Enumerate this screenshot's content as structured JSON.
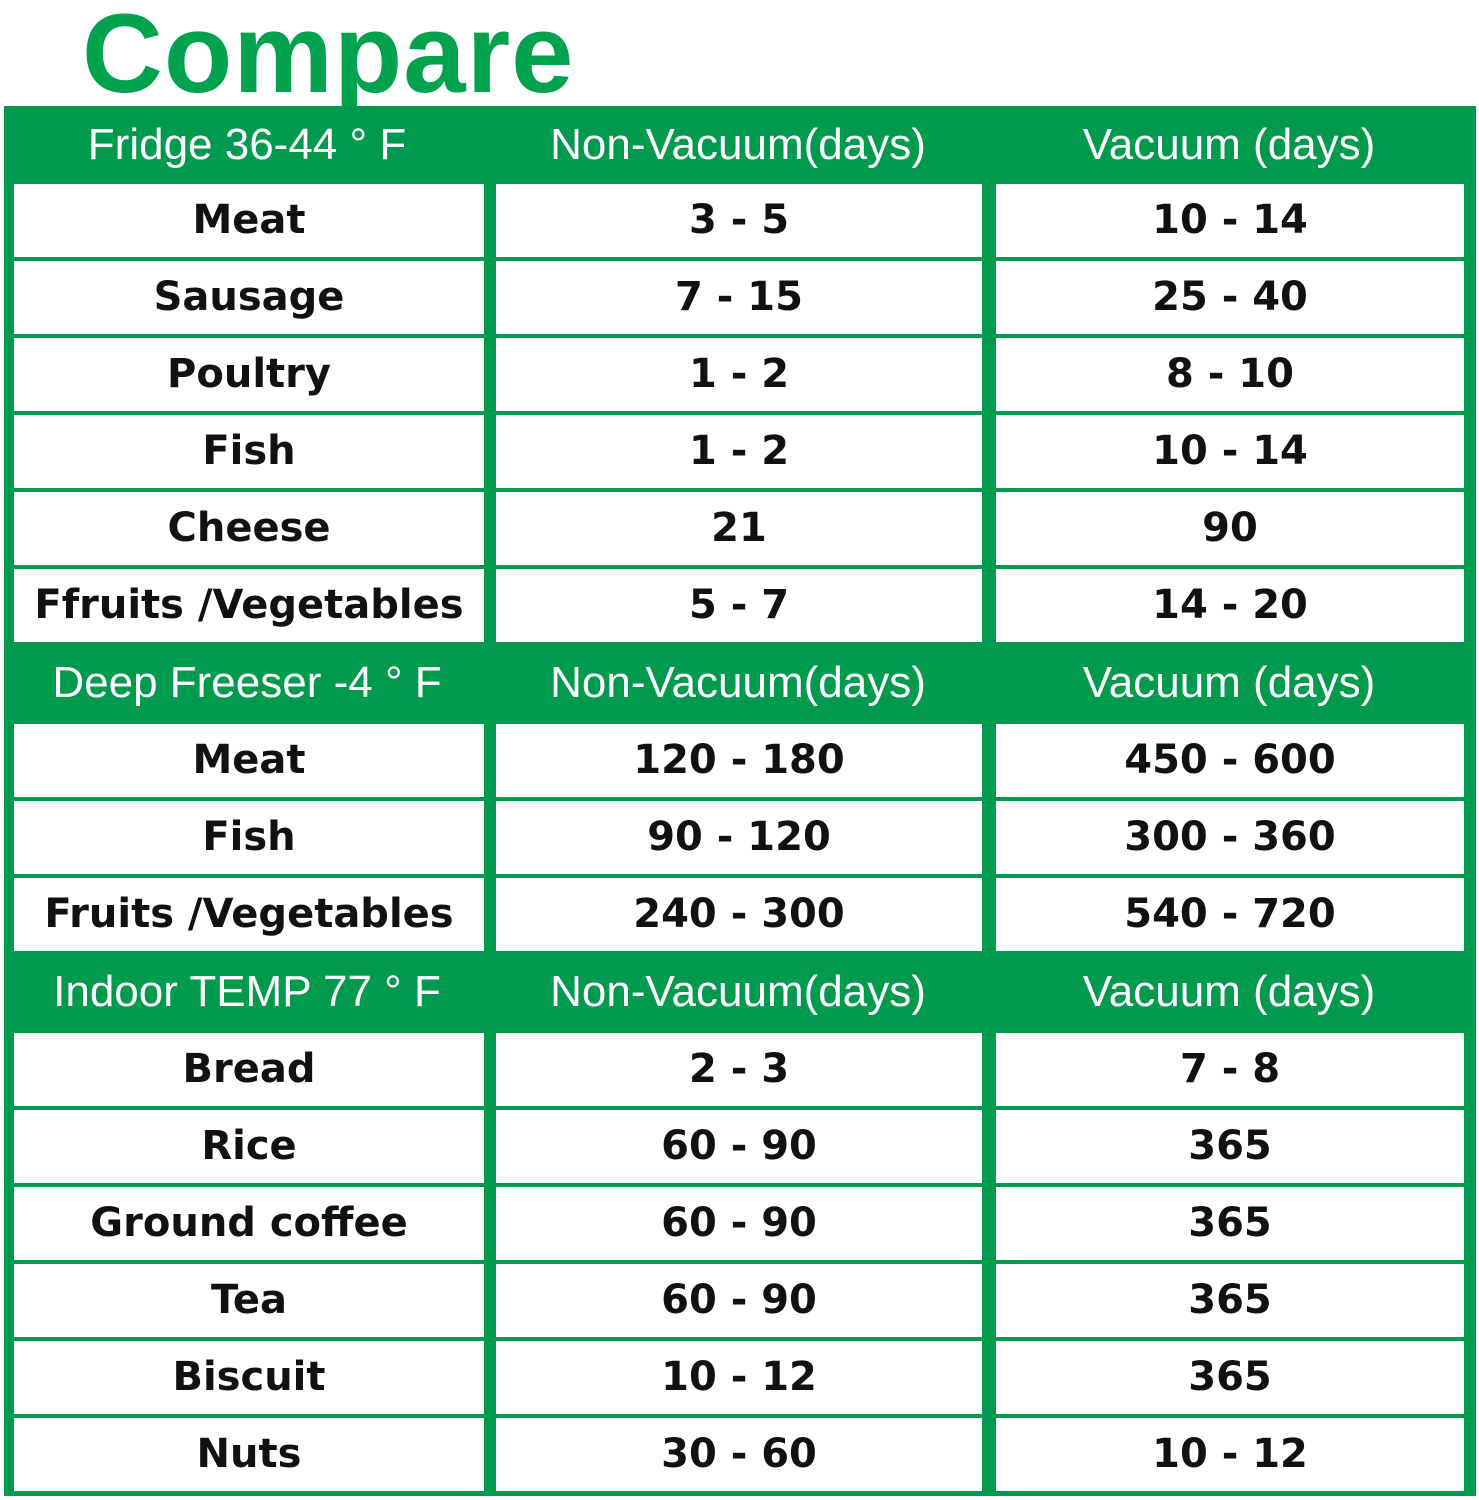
{
  "title": "Compare",
  "colors": {
    "accent": "#00a24e",
    "border": "#009a4e"
  },
  "sections": [
    {
      "header": {
        "category": "Fridge 36-44 ° F",
        "non_vacuum": "Non-Vacuum(days)",
        "vacuum": "Vacuum (days)"
      },
      "rows": [
        {
          "item": "Meat",
          "non_vacuum": "3 - 5",
          "vacuum": "10 - 14"
        },
        {
          "item": "Sausage",
          "non_vacuum": "7 - 15",
          "vacuum": "25 - 40"
        },
        {
          "item": "Poultry",
          "non_vacuum": "1 - 2",
          "vacuum": "8 - 10"
        },
        {
          "item": "Fish",
          "non_vacuum": "1 - 2",
          "vacuum": "10 - 14"
        },
        {
          "item": "Cheese",
          "non_vacuum": "21",
          "vacuum": "90"
        },
        {
          "item": "Ffruits /Vegetables",
          "non_vacuum": "5 - 7",
          "vacuum": "14 - 20"
        }
      ]
    },
    {
      "header": {
        "category": "Deep Freeser -4 ° F",
        "non_vacuum": "Non-Vacuum(days)",
        "vacuum": "Vacuum (days)"
      },
      "rows": [
        {
          "item": "Meat",
          "non_vacuum": "120 - 180",
          "vacuum": "450 - 600"
        },
        {
          "item": "Fish",
          "non_vacuum": "90 - 120",
          "vacuum": "300 - 360"
        },
        {
          "item": "Fruits /Vegetables",
          "non_vacuum": "240 - 300",
          "vacuum": "540 - 720"
        }
      ]
    },
    {
      "header": {
        "category": "Indoor TEMP 77 ° F",
        "non_vacuum": "Non-Vacuum(days)",
        "vacuum": "Vacuum (days)"
      },
      "rows": [
        {
          "item": "Bread",
          "non_vacuum": "2 - 3",
          "vacuum": "7 - 8"
        },
        {
          "item": "Rice",
          "non_vacuum": "60 - 90",
          "vacuum": "365"
        },
        {
          "item": "Ground coffee",
          "non_vacuum": "60 - 90",
          "vacuum": "365"
        },
        {
          "item": "Tea",
          "non_vacuum": "60 - 90",
          "vacuum": "365"
        },
        {
          "item": "Biscuit",
          "non_vacuum": "10 - 12",
          "vacuum": "365"
        },
        {
          "item": "Nuts",
          "non_vacuum": "30 - 60",
          "vacuum": "10 - 12"
        }
      ]
    }
  ]
}
